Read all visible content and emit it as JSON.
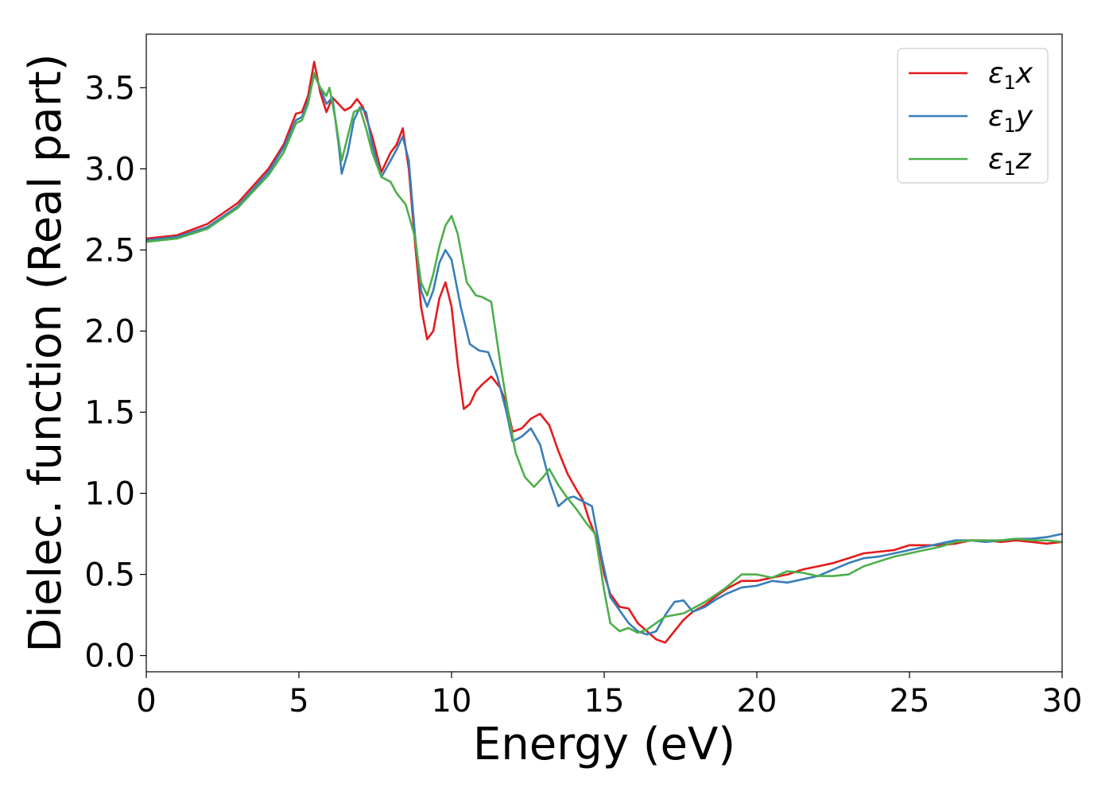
{
  "chart_data": {
    "type": "line",
    "title": "",
    "xlabel": "Energy (eV)",
    "ylabel": "Dielec. function (Real part)",
    "xlim": [
      0,
      30
    ],
    "ylim": [
      -0.1,
      3.83
    ],
    "xticks": [
      0,
      5,
      10,
      15,
      20,
      25,
      30
    ],
    "xtick_labels": [
      "0",
      "5",
      "10",
      "15",
      "20",
      "25",
      "30"
    ],
    "yticks": [
      0,
      0.5,
      1.0,
      1.5,
      2.0,
      2.5,
      3.0,
      3.5
    ],
    "ytick_labels": [
      "0.0",
      "0.5",
      "1.0",
      "1.5",
      "2.0",
      "2.5",
      "3.0",
      "3.5"
    ],
    "grid": false,
    "legend": {
      "position": "top-right"
    },
    "series": [
      {
        "name": "ε1x",
        "label_base": "ε",
        "label_sub": "1",
        "label_suffix": "x",
        "color": "#e41a1c",
        "points": [
          [
            0,
            2.57
          ],
          [
            1,
            2.59
          ],
          [
            2,
            2.66
          ],
          [
            3,
            2.79
          ],
          [
            4,
            3.0
          ],
          [
            4.5,
            3.15
          ],
          [
            4.9,
            3.34
          ],
          [
            5.1,
            3.35
          ],
          [
            5.3,
            3.45
          ],
          [
            5.5,
            3.66
          ],
          [
            5.7,
            3.47
          ],
          [
            5.9,
            3.35
          ],
          [
            6.1,
            3.44
          ],
          [
            6.3,
            3.4
          ],
          [
            6.5,
            3.36
          ],
          [
            6.7,
            3.38
          ],
          [
            6.9,
            3.43
          ],
          [
            7.1,
            3.38
          ],
          [
            7.4,
            3.2
          ],
          [
            7.7,
            2.98
          ],
          [
            8.0,
            3.1
          ],
          [
            8.2,
            3.15
          ],
          [
            8.4,
            3.25
          ],
          [
            8.6,
            3.0
          ],
          [
            8.8,
            2.55
          ],
          [
            9.0,
            2.15
          ],
          [
            9.2,
            1.95
          ],
          [
            9.4,
            2.0
          ],
          [
            9.6,
            2.2
          ],
          [
            9.8,
            2.3
          ],
          [
            10.0,
            2.15
          ],
          [
            10.2,
            1.8
          ],
          [
            10.4,
            1.52
          ],
          [
            10.6,
            1.55
          ],
          [
            10.8,
            1.63
          ],
          [
            11.0,
            1.67
          ],
          [
            11.3,
            1.72
          ],
          [
            11.6,
            1.65
          ],
          [
            11.8,
            1.55
          ],
          [
            12.0,
            1.38
          ],
          [
            12.3,
            1.4
          ],
          [
            12.6,
            1.46
          ],
          [
            12.9,
            1.49
          ],
          [
            13.2,
            1.42
          ],
          [
            13.5,
            1.26
          ],
          [
            13.8,
            1.12
          ],
          [
            14.1,
            1.02
          ],
          [
            14.3,
            0.96
          ],
          [
            14.5,
            0.84
          ],
          [
            14.8,
            0.7
          ],
          [
            15.0,
            0.5
          ],
          [
            15.2,
            0.38
          ],
          [
            15.5,
            0.3
          ],
          [
            15.8,
            0.29
          ],
          [
            16.1,
            0.2
          ],
          [
            16.4,
            0.15
          ],
          [
            16.7,
            0.1
          ],
          [
            17.0,
            0.08
          ],
          [
            17.3,
            0.15
          ],
          [
            17.6,
            0.22
          ],
          [
            17.9,
            0.27
          ],
          [
            18.3,
            0.31
          ],
          [
            18.7,
            0.37
          ],
          [
            19.0,
            0.41
          ],
          [
            19.5,
            0.46
          ],
          [
            20.0,
            0.46
          ],
          [
            20.5,
            0.48
          ],
          [
            21.0,
            0.5
          ],
          [
            21.5,
            0.53
          ],
          [
            22.0,
            0.55
          ],
          [
            22.5,
            0.57
          ],
          [
            23.0,
            0.6
          ],
          [
            23.5,
            0.63
          ],
          [
            24.0,
            0.64
          ],
          [
            24.5,
            0.65
          ],
          [
            25.0,
            0.68
          ],
          [
            25.5,
            0.68
          ],
          [
            26.0,
            0.68
          ],
          [
            26.5,
            0.69
          ],
          [
            27.0,
            0.71
          ],
          [
            27.5,
            0.71
          ],
          [
            28.0,
            0.7
          ],
          [
            28.5,
            0.71
          ],
          [
            29.0,
            0.7
          ],
          [
            29.5,
            0.69
          ],
          [
            30.0,
            0.7
          ]
        ]
      },
      {
        "name": "ε1y",
        "label_base": "ε",
        "label_sub": "1",
        "label_suffix": "y",
        "color": "#377eb8",
        "points": [
          [
            0,
            2.56
          ],
          [
            1,
            2.58
          ],
          [
            2,
            2.64
          ],
          [
            3,
            2.77
          ],
          [
            4,
            2.98
          ],
          [
            4.5,
            3.13
          ],
          [
            4.9,
            3.3
          ],
          [
            5.1,
            3.32
          ],
          [
            5.3,
            3.42
          ],
          [
            5.5,
            3.58
          ],
          [
            5.7,
            3.5
          ],
          [
            5.9,
            3.4
          ],
          [
            6.1,
            3.44
          ],
          [
            6.3,
            3.15
          ],
          [
            6.4,
            2.97
          ],
          [
            6.6,
            3.1
          ],
          [
            6.8,
            3.3
          ],
          [
            7.0,
            3.38
          ],
          [
            7.2,
            3.35
          ],
          [
            7.4,
            3.15
          ],
          [
            7.7,
            2.95
          ],
          [
            8.0,
            3.05
          ],
          [
            8.2,
            3.12
          ],
          [
            8.4,
            3.2
          ],
          [
            8.6,
            3.05
          ],
          [
            8.8,
            2.6
          ],
          [
            9.0,
            2.25
          ],
          [
            9.2,
            2.15
          ],
          [
            9.4,
            2.25
          ],
          [
            9.6,
            2.42
          ],
          [
            9.8,
            2.5
          ],
          [
            10.0,
            2.44
          ],
          [
            10.3,
            2.15
          ],
          [
            10.6,
            1.92
          ],
          [
            10.9,
            1.88
          ],
          [
            11.2,
            1.87
          ],
          [
            11.5,
            1.72
          ],
          [
            11.8,
            1.5
          ],
          [
            12.0,
            1.32
          ],
          [
            12.3,
            1.35
          ],
          [
            12.6,
            1.4
          ],
          [
            12.9,
            1.3
          ],
          [
            13.2,
            1.08
          ],
          [
            13.5,
            0.92
          ],
          [
            13.8,
            0.97
          ],
          [
            14.0,
            0.98
          ],
          [
            14.3,
            0.95
          ],
          [
            14.6,
            0.92
          ],
          [
            14.9,
            0.62
          ],
          [
            15.2,
            0.36
          ],
          [
            15.5,
            0.28
          ],
          [
            15.8,
            0.2
          ],
          [
            16.1,
            0.15
          ],
          [
            16.4,
            0.13
          ],
          [
            16.7,
            0.15
          ],
          [
            17.0,
            0.25
          ],
          [
            17.3,
            0.33
          ],
          [
            17.6,
            0.34
          ],
          [
            17.9,
            0.27
          ],
          [
            18.3,
            0.3
          ],
          [
            18.7,
            0.35
          ],
          [
            19.0,
            0.38
          ],
          [
            19.5,
            0.42
          ],
          [
            20.0,
            0.43
          ],
          [
            20.5,
            0.46
          ],
          [
            21.0,
            0.45
          ],
          [
            21.5,
            0.47
          ],
          [
            22.0,
            0.49
          ],
          [
            22.5,
            0.53
          ],
          [
            23.0,
            0.57
          ],
          [
            23.5,
            0.6
          ],
          [
            24.0,
            0.61
          ],
          [
            24.5,
            0.63
          ],
          [
            25.0,
            0.65
          ],
          [
            25.5,
            0.67
          ],
          [
            26.0,
            0.69
          ],
          [
            26.5,
            0.71
          ],
          [
            27.0,
            0.71
          ],
          [
            27.5,
            0.7
          ],
          [
            28.0,
            0.71
          ],
          [
            28.5,
            0.72
          ],
          [
            29.0,
            0.72
          ],
          [
            29.5,
            0.73
          ],
          [
            30.0,
            0.75
          ]
        ]
      },
      {
        "name": "ε1z",
        "label_base": "ε",
        "label_sub": "1",
        "label_suffix": "z",
        "color": "#4daf4a",
        "points": [
          [
            0,
            2.55
          ],
          [
            1,
            2.57
          ],
          [
            2,
            2.63
          ],
          [
            3,
            2.76
          ],
          [
            4,
            2.96
          ],
          [
            4.5,
            3.1
          ],
          [
            4.9,
            3.28
          ],
          [
            5.1,
            3.3
          ],
          [
            5.3,
            3.4
          ],
          [
            5.5,
            3.59
          ],
          [
            5.7,
            3.5
          ],
          [
            5.9,
            3.45
          ],
          [
            6.0,
            3.5
          ],
          [
            6.2,
            3.3
          ],
          [
            6.4,
            3.05
          ],
          [
            6.6,
            3.2
          ],
          [
            6.8,
            3.35
          ],
          [
            7.0,
            3.37
          ],
          [
            7.2,
            3.25
          ],
          [
            7.4,
            3.1
          ],
          [
            7.7,
            2.95
          ],
          [
            8.0,
            2.92
          ],
          [
            8.2,
            2.85
          ],
          [
            8.5,
            2.78
          ],
          [
            8.8,
            2.58
          ],
          [
            9.0,
            2.3
          ],
          [
            9.2,
            2.22
          ],
          [
            9.4,
            2.35
          ],
          [
            9.6,
            2.52
          ],
          [
            9.8,
            2.65
          ],
          [
            10.0,
            2.71
          ],
          [
            10.2,
            2.6
          ],
          [
            10.5,
            2.3
          ],
          [
            10.8,
            2.22
          ],
          [
            11.0,
            2.21
          ],
          [
            11.3,
            2.18
          ],
          [
            11.6,
            1.8
          ],
          [
            11.9,
            1.45
          ],
          [
            12.1,
            1.25
          ],
          [
            12.4,
            1.1
          ],
          [
            12.7,
            1.04
          ],
          [
            13.0,
            1.1
          ],
          [
            13.2,
            1.15
          ],
          [
            13.5,
            1.05
          ],
          [
            13.8,
            0.97
          ],
          [
            14.1,
            0.9
          ],
          [
            14.4,
            0.82
          ],
          [
            14.7,
            0.75
          ],
          [
            15.0,
            0.4
          ],
          [
            15.2,
            0.2
          ],
          [
            15.5,
            0.15
          ],
          [
            15.8,
            0.17
          ],
          [
            16.1,
            0.14
          ],
          [
            16.4,
            0.16
          ],
          [
            16.7,
            0.2
          ],
          [
            17.0,
            0.24
          ],
          [
            17.3,
            0.25
          ],
          [
            17.6,
            0.26
          ],
          [
            17.9,
            0.29
          ],
          [
            18.3,
            0.33
          ],
          [
            18.7,
            0.38
          ],
          [
            19.0,
            0.42
          ],
          [
            19.5,
            0.5
          ],
          [
            20.0,
            0.5
          ],
          [
            20.5,
            0.48
          ],
          [
            21.0,
            0.52
          ],
          [
            21.5,
            0.51
          ],
          [
            22.0,
            0.49
          ],
          [
            22.5,
            0.49
          ],
          [
            23.0,
            0.5
          ],
          [
            23.5,
            0.55
          ],
          [
            24.0,
            0.58
          ],
          [
            24.5,
            0.61
          ],
          [
            25.0,
            0.63
          ],
          [
            25.5,
            0.65
          ],
          [
            26.0,
            0.67
          ],
          [
            26.5,
            0.7
          ],
          [
            27.0,
            0.71
          ],
          [
            27.5,
            0.71
          ],
          [
            28.0,
            0.71
          ],
          [
            28.5,
            0.72
          ],
          [
            29.0,
            0.71
          ],
          [
            29.5,
            0.71
          ],
          [
            30.0,
            0.7
          ]
        ]
      }
    ]
  }
}
